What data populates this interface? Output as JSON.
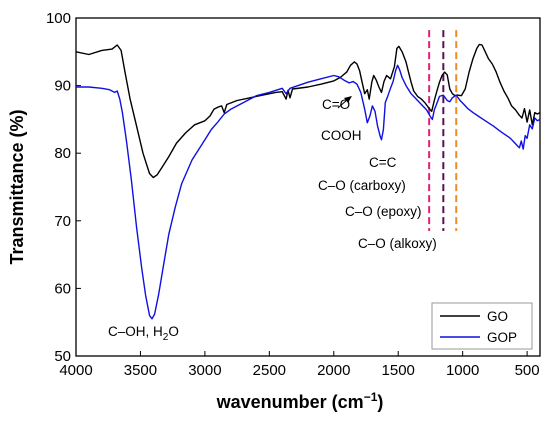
{
  "chart_data": {
    "type": "line",
    "xlabel": "wavenumber (cm",
    "xlabel_sup": "−1",
    "xlabel_end": ")",
    "ylabel": "Transmittance (%)",
    "xlim": [
      4000,
      400
    ],
    "ylim": [
      50,
      100
    ],
    "x_ticks": [
      4000,
      3500,
      3000,
      2500,
      2000,
      1500,
      1000,
      500
    ],
    "y_ticks": [
      50,
      60,
      70,
      80,
      90,
      100
    ],
    "grid": false,
    "legend_position": "bottom-right",
    "series": [
      {
        "name": "GO",
        "color": "#000000",
        "points": [
          [
            4000,
            95.0
          ],
          [
            3900,
            94.6
          ],
          [
            3800,
            95.2
          ],
          [
            3720,
            95.4
          ],
          [
            3680,
            96.0
          ],
          [
            3650,
            95.2
          ],
          [
            3620,
            92.0
          ],
          [
            3580,
            88.0
          ],
          [
            3530,
            84.0
          ],
          [
            3480,
            80.0
          ],
          [
            3430,
            77.0
          ],
          [
            3400,
            76.4
          ],
          [
            3370,
            76.8
          ],
          [
            3330,
            78.0
          ],
          [
            3280,
            79.5
          ],
          [
            3220,
            81.5
          ],
          [
            3150,
            83.0
          ],
          [
            3080,
            84.2
          ],
          [
            3000,
            84.8
          ],
          [
            2960,
            85.5
          ],
          [
            2930,
            86.5
          ],
          [
            2900,
            86.8
          ],
          [
            2870,
            87.0
          ],
          [
            2850,
            86.0
          ],
          [
            2830,
            87.2
          ],
          [
            2750,
            87.8
          ],
          [
            2650,
            88.2
          ],
          [
            2550,
            88.6
          ],
          [
            2450,
            89.0
          ],
          [
            2400,
            89.1
          ],
          [
            2370,
            88.0
          ],
          [
            2355,
            89.3
          ],
          [
            2340,
            88.2
          ],
          [
            2320,
            89.5
          ],
          [
            2200,
            89.8
          ],
          [
            2100,
            90.2
          ],
          [
            2000,
            90.7
          ],
          [
            1950,
            91.2
          ],
          [
            1900,
            92.0
          ],
          [
            1870,
            93.0
          ],
          [
            1840,
            93.5
          ],
          [
            1820,
            93.2
          ],
          [
            1800,
            92.2
          ],
          [
            1780,
            90.5
          ],
          [
            1760,
            88.8
          ],
          [
            1740,
            89.4
          ],
          [
            1725,
            88.0
          ],
          [
            1705,
            90.5
          ],
          [
            1690,
            91.5
          ],
          [
            1670,
            90.8
          ],
          [
            1650,
            89.8
          ],
          [
            1630,
            89.0
          ],
          [
            1610,
            90.6
          ],
          [
            1590,
            91.5
          ],
          [
            1560,
            91.0
          ],
          [
            1530,
            92.8
          ],
          [
            1510,
            95.5
          ],
          [
            1495,
            95.8
          ],
          [
            1470,
            95.0
          ],
          [
            1440,
            93.5
          ],
          [
            1420,
            92.0
          ],
          [
            1400,
            90.5
          ],
          [
            1380,
            89.2
          ],
          [
            1350,
            88.4
          ],
          [
            1320,
            88.0
          ],
          [
            1290,
            87.4
          ],
          [
            1260,
            86.6
          ],
          [
            1240,
            86.2
          ],
          [
            1220,
            87.8
          ],
          [
            1200,
            89.2
          ],
          [
            1180,
            90.5
          ],
          [
            1160,
            91.5
          ],
          [
            1140,
            92.0
          ],
          [
            1120,
            91.6
          ],
          [
            1100,
            89.5
          ],
          [
            1080,
            88.8
          ],
          [
            1060,
            88.5
          ],
          [
            1040,
            88.6
          ],
          [
            1010,
            88.5
          ],
          [
            980,
            89.5
          ],
          [
            950,
            92.0
          ],
          [
            920,
            94.0
          ],
          [
            890,
            95.5
          ],
          [
            870,
            96.1
          ],
          [
            850,
            96.0
          ],
          [
            830,
            95.2
          ],
          [
            800,
            94.0
          ],
          [
            770,
            93.2
          ],
          [
            740,
            92.0
          ],
          [
            710,
            90.5
          ],
          [
            680,
            89.2
          ],
          [
            650,
            88.2
          ],
          [
            620,
            87.0
          ],
          [
            590,
            86.4
          ],
          [
            560,
            85.6
          ],
          [
            540,
            85.2
          ],
          [
            520,
            86.6
          ],
          [
            500,
            84.6
          ],
          [
            480,
            86.4
          ],
          [
            460,
            84.2
          ],
          [
            440,
            86.0
          ],
          [
            420,
            85.8
          ],
          [
            400,
            86.0
          ]
        ]
      },
      {
        "name": "GOP",
        "color": "#1010e0",
        "points": [
          [
            4000,
            89.8
          ],
          [
            3900,
            89.8
          ],
          [
            3800,
            89.6
          ],
          [
            3740,
            89.4
          ],
          [
            3700,
            89.0
          ],
          [
            3680,
            89.2
          ],
          [
            3660,
            88.0
          ],
          [
            3640,
            86.0
          ],
          [
            3610,
            82.0
          ],
          [
            3570,
            76.0
          ],
          [
            3530,
            69.0
          ],
          [
            3490,
            63.0
          ],
          [
            3460,
            59.0
          ],
          [
            3430,
            56.0
          ],
          [
            3410,
            55.5
          ],
          [
            3390,
            56.2
          ],
          [
            3360,
            59.0
          ],
          [
            3320,
            63.5
          ],
          [
            3280,
            68.0
          ],
          [
            3230,
            72.0
          ],
          [
            3180,
            75.5
          ],
          [
            3100,
            79.0
          ],
          [
            3000,
            82.0
          ],
          [
            2950,
            83.5
          ],
          [
            2900,
            84.6
          ],
          [
            2850,
            85.8
          ],
          [
            2800,
            86.5
          ],
          [
            2700,
            87.5
          ],
          [
            2600,
            88.5
          ],
          [
            2500,
            89.0
          ],
          [
            2400,
            89.6
          ],
          [
            2370,
            88.8
          ],
          [
            2340,
            89.6
          ],
          [
            2200,
            90.5
          ],
          [
            2100,
            91.0
          ],
          [
            2000,
            91.5
          ],
          [
            1960,
            91.3
          ],
          [
            1920,
            90.8
          ],
          [
            1880,
            90.4
          ],
          [
            1850,
            90.6
          ],
          [
            1820,
            90.2
          ],
          [
            1790,
            89.0
          ],
          [
            1760,
            86.5
          ],
          [
            1740,
            84.5
          ],
          [
            1720,
            85.5
          ],
          [
            1700,
            87.0
          ],
          [
            1680,
            86.2
          ],
          [
            1660,
            84.0
          ],
          [
            1640,
            82.5
          ],
          [
            1630,
            82.0
          ],
          [
            1615,
            83.5
          ],
          [
            1600,
            87.5
          ],
          [
            1580,
            88.5
          ],
          [
            1560,
            89.6
          ],
          [
            1540,
            90.6
          ],
          [
            1520,
            92.2
          ],
          [
            1505,
            93.0
          ],
          [
            1490,
            92.4
          ],
          [
            1470,
            91.2
          ],
          [
            1440,
            90.0
          ],
          [
            1400,
            88.8
          ],
          [
            1360,
            88.0
          ],
          [
            1320,
            87.2
          ],
          [
            1280,
            86.4
          ],
          [
            1250,
            85.4
          ],
          [
            1235,
            85.0
          ],
          [
            1220,
            86.4
          ],
          [
            1200,
            87.4
          ],
          [
            1180,
            88.4
          ],
          [
            1150,
            88.6
          ],
          [
            1120,
            87.8
          ],
          [
            1100,
            87.6
          ],
          [
            1080,
            88.2
          ],
          [
            1050,
            88.6
          ],
          [
            1020,
            87.8
          ],
          [
            990,
            87.2
          ],
          [
            960,
            86.6
          ],
          [
            920,
            86.0
          ],
          [
            880,
            85.5
          ],
          [
            840,
            85.0
          ],
          [
            800,
            84.5
          ],
          [
            760,
            84.0
          ],
          [
            720,
            83.4
          ],
          [
            690,
            83.0
          ],
          [
            660,
            82.6
          ],
          [
            630,
            82.2
          ],
          [
            600,
            81.6
          ],
          [
            580,
            81.2
          ],
          [
            560,
            80.8
          ],
          [
            545,
            81.8
          ],
          [
            530,
            80.6
          ],
          [
            515,
            82.6
          ],
          [
            500,
            82.2
          ],
          [
            480,
            84.2
          ],
          [
            460,
            83.6
          ],
          [
            440,
            85.2
          ],
          [
            420,
            84.8
          ],
          [
            400,
            85.0
          ]
        ]
      }
    ],
    "markers": [
      {
        "x": 1260,
        "color": "#e0207a"
      },
      {
        "x": 1150,
        "color": "#5a1050"
      },
      {
        "x": 1050,
        "color": "#f08a24"
      }
    ],
    "annotations": [
      {
        "id": "coh",
        "text": "C–OH, H",
        "sub": "2",
        "text_end": "O"
      },
      {
        "id": "co",
        "text": "C=O"
      },
      {
        "id": "cooh",
        "text": "COOH"
      },
      {
        "id": "cc",
        "text": "C=C"
      },
      {
        "id": "carboxy",
        "text": "C–O (carboxy)"
      },
      {
        "id": "epoxy",
        "text": "C–O (epoxy)"
      },
      {
        "id": "alkoxy",
        "text": "C–O (alkoxy)"
      }
    ],
    "legend": [
      {
        "label": "GO",
        "color": "#000000"
      },
      {
        "label": "GOP",
        "color": "#1010e0"
      }
    ]
  }
}
